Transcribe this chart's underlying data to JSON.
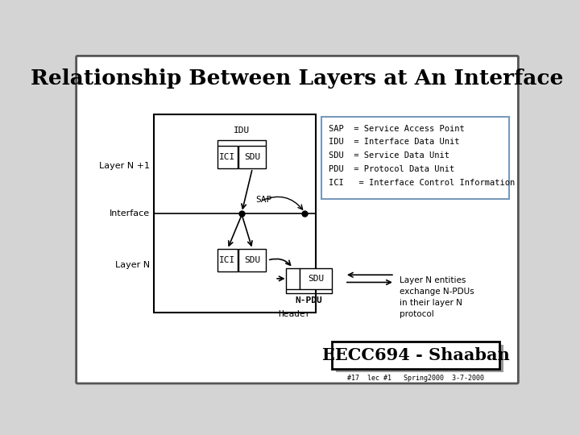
{
  "title": "Relationship Between Layers at An Interface",
  "bg_color": "#d4d4d4",
  "slide_bg": "#ffffff",
  "legend_lines": [
    "SAP  = Service Access Point",
    "IDU  = Interface Data Unit",
    "SDU  = Service Data Unit",
    "PDU  = Protocol Data Unit",
    "ICI   = Interface Control Information"
  ],
  "footer_text": "EECC694 - Shaaban",
  "small_footer": "#17  lec #1   Spring2000  3-7-2000",
  "layer_n1_label": "Layer N +1",
  "interface_label": "Interface",
  "layer_n_label": "Layer N",
  "idu_label": "IDU",
  "sap_label": "SAP",
  "npdu_label": "N-PDU",
  "header_label": "Header",
  "layer_n_note": "Layer N entities\nexchange N-PDUs\nin their layer N\nprotocol"
}
